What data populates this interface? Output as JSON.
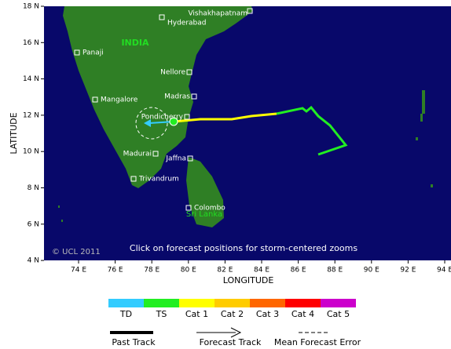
{
  "map": {
    "lat_labels": [
      "18 N",
      "16 N",
      "14 N",
      "12 N",
      "10 N",
      "8 N",
      "6 N",
      "4 N"
    ],
    "lon_labels": [
      "74 E",
      "76 E",
      "78 E",
      "80 E",
      "82 E",
      "84 E",
      "86 E",
      "88 E",
      "90 E",
      "92 E",
      "94 E"
    ],
    "y_axis_title": "LATITUDE",
    "x_axis_title": "LONGITUDE",
    "country_labels": [
      "INDIA",
      "Sri Lanka"
    ],
    "cities": [
      "Vishakhapatnam",
      "Hyderabad",
      "Panaji",
      "Nellore",
      "Madras",
      "Mangalore",
      "Pondicherry",
      "Madurai",
      "Jaffna",
      "Trivandrum",
      "Colombo"
    ],
    "copyright": "© UCL 2011",
    "hint": "Click on forecast positions for storm-centered zooms"
  },
  "legend": {
    "categories": [
      {
        "label": "TD",
        "color": "#33ccff"
      },
      {
        "label": "TS",
        "color": "#22ee22"
      },
      {
        "label": "Cat 1",
        "color": "#ffff00"
      },
      {
        "label": "Cat 2",
        "color": "#ffcc00"
      },
      {
        "label": "Cat 3",
        "color": "#ff6600"
      },
      {
        "label": "Cat 4",
        "color": "#ff0000"
      },
      {
        "label": "Cat 5",
        "color": "#cc00cc"
      }
    ],
    "past_track": "Past Track",
    "forecast_track": "Forecast Track",
    "mean_error": "Mean Forecast Error"
  }
}
